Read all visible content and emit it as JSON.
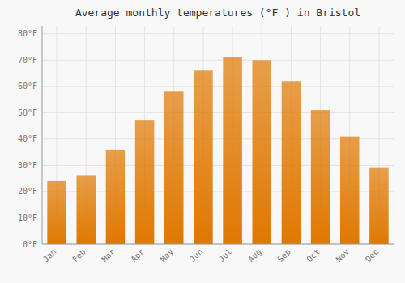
{
  "chart_data": {
    "type": "bar",
    "title": "Average monthly temperatures (°F ) in Bristol",
    "categories": [
      "Jan",
      "Feb",
      "Mar",
      "Apr",
      "May",
      "Jun",
      "Jul",
      "Aug",
      "Sep",
      "Oct",
      "Nov",
      "Dec"
    ],
    "values": [
      24,
      26,
      36,
      47,
      58,
      66,
      71,
      70,
      62,
      51,
      41,
      29
    ],
    "color": "#E07800",
    "ylim": [
      0,
      83
    ],
    "yticks": [
      {
        "value": 0,
        "label": "0°F"
      },
      {
        "value": 10,
        "label": "10°F"
      },
      {
        "value": 20,
        "label": "20°F"
      },
      {
        "value": 30,
        "label": "30°F"
      },
      {
        "value": 40,
        "label": "40°F"
      },
      {
        "value": 50,
        "label": "50°F"
      },
      {
        "value": 60,
        "label": "60°F"
      },
      {
        "value": 70,
        "label": "70°F"
      },
      {
        "value": 80,
        "label": "80°F"
      }
    ],
    "grid": true
  }
}
